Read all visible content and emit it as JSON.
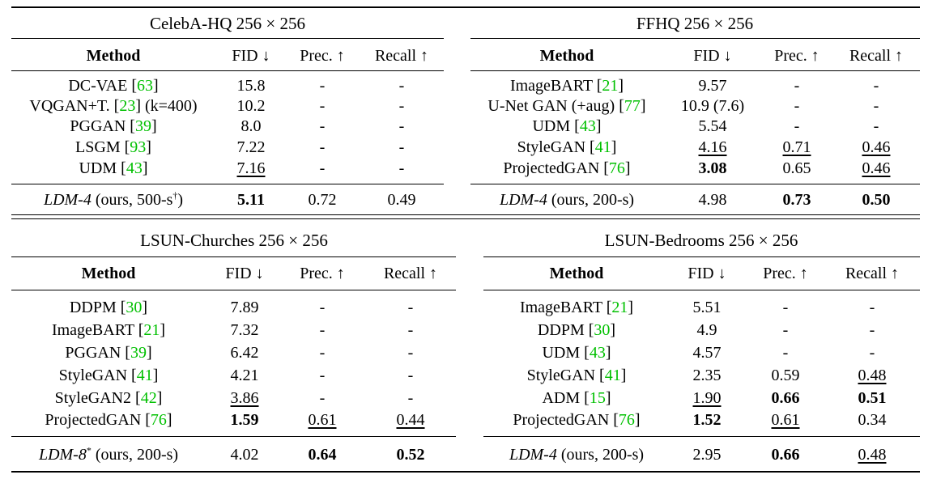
{
  "panels": [
    {
      "title": "CelebA-HQ 256 × 256",
      "headers": {
        "method": "Method",
        "fid": "FID ↓",
        "prec": "Prec. ↑",
        "recall": "Recall ↑"
      },
      "rows": [
        {
          "name": "DC-VAE ",
          "ref": "63",
          "suffix": "",
          "fid": "15.8",
          "prec": "-",
          "recall": "-"
        },
        {
          "name": "VQGAN+T. ",
          "ref": "23",
          "suffix": " (k=400)",
          "fid": "10.2",
          "prec": "-",
          "recall": "-"
        },
        {
          "name": "PGGAN ",
          "ref": "39",
          "suffix": "",
          "fid": "8.0",
          "prec": "-",
          "recall": "-"
        },
        {
          "name": "LSGM ",
          "ref": "93",
          "suffix": "",
          "fid": "7.22",
          "prec": "-",
          "recall": "-"
        },
        {
          "name": "UDM ",
          "ref": "43",
          "suffix": "",
          "fid": "7.16",
          "prec": "-",
          "recall": "-"
        }
      ],
      "ours": {
        "name": "LDM-4",
        "rest": " (ours, 500-s",
        "sup": "†",
        "close": ")",
        "fid": "5.11",
        "prec": "0.72",
        "recall": "0.49"
      }
    },
    {
      "title": "FFHQ 256 × 256",
      "headers": {
        "method": "Method",
        "fid": "FID ↓",
        "prec": "Prec. ↑",
        "recall": "Recall ↑"
      },
      "rows": [
        {
          "name": "ImageBART ",
          "ref": "21",
          "suffix": "",
          "fid": "9.57",
          "prec": "-",
          "recall": "-"
        },
        {
          "name": "U-Net GAN (+aug) ",
          "ref": "77",
          "suffix": "",
          "fid": "10.9 (7.6)",
          "prec": "-",
          "recall": "-"
        },
        {
          "name": "UDM ",
          "ref": "43",
          "suffix": "",
          "fid": "5.54",
          "prec": "-",
          "recall": "-"
        },
        {
          "name": "StyleGAN ",
          "ref": "41",
          "suffix": "",
          "fid": "4.16",
          "prec": "0.71",
          "recall": "0.46"
        },
        {
          "name": "ProjectedGAN ",
          "ref": "76",
          "suffix": "",
          "fid": "3.08",
          "prec": "0.65",
          "recall": "0.46"
        }
      ],
      "ours": {
        "name": "LDM-4",
        "rest": " (ours, 200-s)",
        "sup": "",
        "close": "",
        "fid": "4.98",
        "prec": "0.73",
        "recall": "0.50"
      }
    },
    {
      "title": "LSUN-Churches 256 × 256",
      "headers": {
        "method": "Method",
        "fid": "FID ↓",
        "prec": "Prec. ↑",
        "recall": "Recall ↑"
      },
      "rows": [
        {
          "name": "DDPM ",
          "ref": "30",
          "suffix": "",
          "fid": "7.89",
          "prec": "-",
          "recall": "-"
        },
        {
          "name": "ImageBART ",
          "ref": "21",
          "suffix": "",
          "fid": "7.32",
          "prec": "-",
          "recall": "-"
        },
        {
          "name": "PGGAN ",
          "ref": "39",
          "suffix": "",
          "fid": "6.42",
          "prec": "-",
          "recall": "-"
        },
        {
          "name": "StyleGAN ",
          "ref": "41",
          "suffix": "",
          "fid": "4.21",
          "prec": "-",
          "recall": "-"
        },
        {
          "name": "StyleGAN2 ",
          "ref": "42",
          "suffix": "",
          "fid": "3.86",
          "prec": "-",
          "recall": "-"
        },
        {
          "name": "ProjectedGAN ",
          "ref": "76",
          "suffix": "",
          "fid": "1.59",
          "prec": "0.61",
          "recall": "0.44"
        }
      ],
      "ours": {
        "name": "LDM-8",
        "rest": " (ours, 200-s)",
        "sup": "*",
        "close": "",
        "fid": "4.02",
        "prec": "0.64",
        "recall": "0.52"
      }
    },
    {
      "title": "LSUN-Bedrooms 256 × 256",
      "headers": {
        "method": "Method",
        "fid": "FID ↓",
        "prec": "Prec. ↑",
        "recall": "Recall ↑"
      },
      "rows": [
        {
          "name": "ImageBART ",
          "ref": "21",
          "suffix": "",
          "fid": "5.51",
          "prec": "-",
          "recall": "-"
        },
        {
          "name": "DDPM ",
          "ref": "30",
          "suffix": "",
          "fid": "4.9",
          "prec": "-",
          "recall": "-"
        },
        {
          "name": "UDM ",
          "ref": "43",
          "suffix": "",
          "fid": "4.57",
          "prec": "-",
          "recall": "-"
        },
        {
          "name": "StyleGAN ",
          "ref": "41",
          "suffix": "",
          "fid": "2.35",
          "prec": "0.59",
          "recall": "0.48"
        },
        {
          "name": "ADM ",
          "ref": "15",
          "suffix": "",
          "fid": "1.90",
          "prec": "0.66",
          "recall": "0.51"
        },
        {
          "name": "ProjectedGAN ",
          "ref": "76",
          "suffix": "",
          "fid": "1.52",
          "prec": "0.61",
          "recall": "0.34"
        }
      ],
      "ours": {
        "name": "LDM-4",
        "rest": " (ours, 200-s)",
        "sup": "",
        "close": "",
        "fid": "2.95",
        "prec": "0.66",
        "recall": "0.48"
      }
    }
  ]
}
